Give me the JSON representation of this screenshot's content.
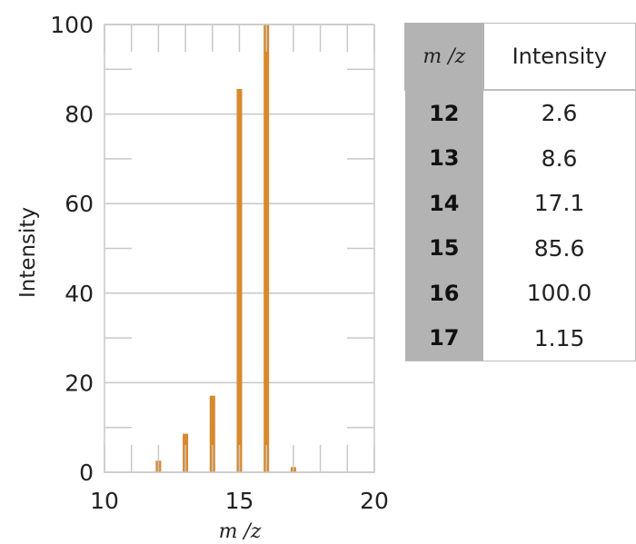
{
  "chart_data": [
    {
      "type": "bar",
      "x": [
        12,
        13,
        14,
        15,
        16,
        17
      ],
      "values": [
        2.6,
        8.6,
        17.1,
        85.6,
        100.0,
        1.15
      ],
      "xlabel": "m /z",
      "ylabel": "Intensity",
      "xlim": [
        10,
        20
      ],
      "ylim": [
        0,
        100
      ],
      "xticks": [
        "10",
        "15",
        "20"
      ],
      "yticks": [
        "0",
        "20",
        "40",
        "60",
        "80",
        "100"
      ],
      "grid": true,
      "bar_color": "#d8892b"
    },
    {
      "type": "table",
      "columns": [
        "m /z",
        "Intensity"
      ],
      "rows": [
        [
          "12",
          "2.6"
        ],
        [
          "13",
          "8.6"
        ],
        [
          "14",
          "17.1"
        ],
        [
          "15",
          "85.6"
        ],
        [
          "16",
          "100.0"
        ],
        [
          "17",
          "1.15"
        ]
      ]
    }
  ]
}
